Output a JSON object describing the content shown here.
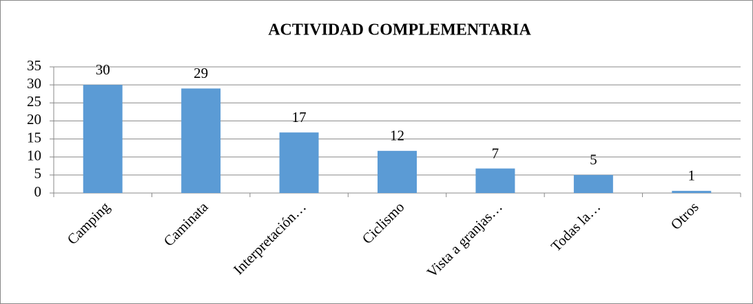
{
  "chart_data": {
    "type": "bar",
    "title": "ACTIVIDAD COMPLEMENTARIA",
    "categories": [
      "Camping",
      "Caminata",
      "Interpretación…",
      "Ciclismo",
      "Vista a granjas…",
      "Todas la…",
      "Otros"
    ],
    "values": [
      30,
      29,
      16.8,
      11.7,
      6.8,
      5,
      0.6
    ],
    "value_labels": [
      "30",
      "29",
      "17",
      "12",
      "7",
      "5",
      "1"
    ],
    "color": "#5b9bd5",
    "ylim": [
      0,
      35
    ],
    "yticks": [
      0,
      5,
      10,
      15,
      20,
      25,
      30,
      35
    ],
    "grid": true
  }
}
